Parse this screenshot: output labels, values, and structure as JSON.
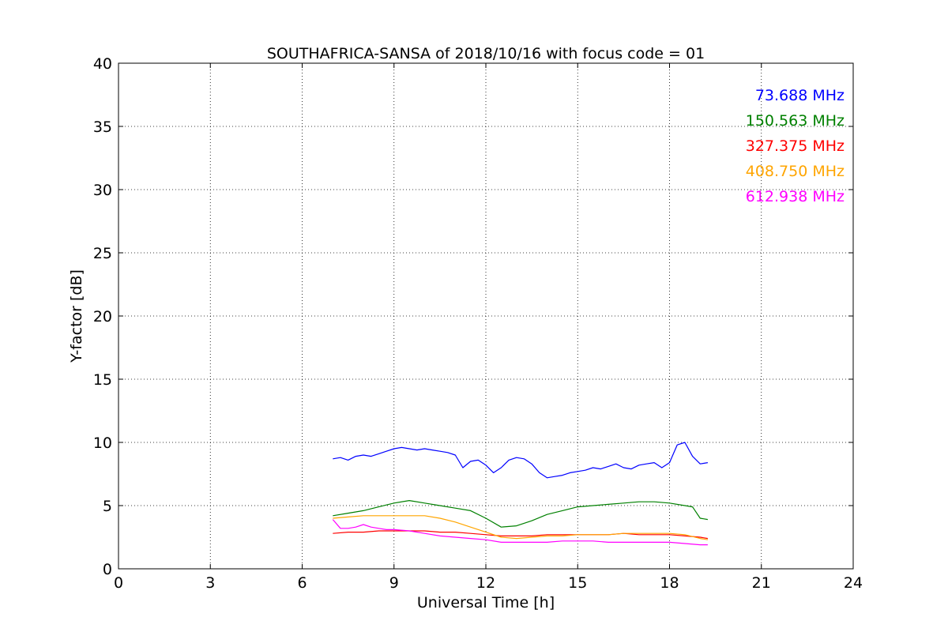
{
  "chart_data": {
    "type": "line",
    "title": "SOUTHAFRICA-SANSA of 2018/10/16 with focus code = 01",
    "xlabel": "Universal Time [h]",
    "ylabel": "Y-factor [dB]",
    "xlim": [
      0,
      24
    ],
    "ylim": [
      0,
      40
    ],
    "xticks": [
      0,
      3,
      6,
      9,
      12,
      15,
      18,
      21,
      24
    ],
    "yticks": [
      0,
      5,
      10,
      15,
      20,
      25,
      30,
      35,
      40
    ],
    "grid": true,
    "legend_position": "top-right",
    "series": [
      {
        "name": "73.688 MHz",
        "color": "#0000ff",
        "x": [
          7.0,
          7.25,
          7.5,
          7.75,
          8.0,
          8.25,
          8.5,
          8.75,
          9.0,
          9.25,
          9.5,
          9.75,
          10.0,
          10.25,
          10.5,
          10.75,
          11.0,
          11.25,
          11.5,
          11.75,
          12.0,
          12.25,
          12.5,
          12.75,
          13.0,
          13.25,
          13.5,
          13.75,
          14.0,
          14.25,
          14.5,
          14.75,
          15.0,
          15.25,
          15.5,
          15.75,
          16.0,
          16.25,
          16.5,
          16.75,
          17.0,
          17.25,
          17.5,
          17.75,
          18.0,
          18.25,
          18.5,
          18.75,
          19.0,
          19.25
        ],
        "y": [
          8.7,
          8.8,
          8.6,
          8.9,
          9.0,
          8.9,
          9.1,
          9.3,
          9.5,
          9.6,
          9.5,
          9.4,
          9.5,
          9.4,
          9.3,
          9.2,
          9.0,
          8.0,
          8.5,
          8.6,
          8.2,
          7.6,
          8.0,
          8.6,
          8.8,
          8.7,
          8.3,
          7.6,
          7.2,
          7.3,
          7.4,
          7.6,
          7.7,
          7.8,
          8.0,
          7.9,
          8.1,
          8.3,
          8.0,
          7.9,
          8.2,
          8.3,
          8.4,
          8.0,
          8.4,
          9.8,
          10.0,
          8.9,
          8.3,
          8.4
        ]
      },
      {
        "name": "150.563 MHz",
        "color": "#008000",
        "x": [
          7.0,
          7.5,
          8.0,
          8.5,
          9.0,
          9.5,
          10.0,
          10.5,
          11.0,
          11.5,
          12.0,
          12.5,
          13.0,
          13.5,
          14.0,
          14.5,
          15.0,
          15.5,
          16.0,
          16.5,
          17.0,
          17.5,
          18.0,
          18.5,
          18.75,
          19.0,
          19.25
        ],
        "y": [
          4.2,
          4.4,
          4.6,
          4.9,
          5.2,
          5.4,
          5.2,
          5.0,
          4.8,
          4.6,
          4.0,
          3.3,
          3.4,
          3.8,
          4.3,
          4.6,
          4.9,
          5.0,
          5.1,
          5.2,
          5.3,
          5.3,
          5.2,
          5.0,
          4.9,
          4.0,
          3.9
        ]
      },
      {
        "name": "327.375 MHz",
        "color": "#ff0000",
        "x": [
          7.0,
          7.5,
          8.0,
          8.5,
          9.0,
          9.5,
          10.0,
          10.5,
          11.0,
          11.5,
          12.0,
          12.5,
          13.0,
          13.5,
          14.0,
          14.5,
          15.0,
          15.5,
          16.0,
          16.5,
          17.0,
          17.5,
          18.0,
          18.5,
          19.0,
          19.25
        ],
        "y": [
          2.8,
          2.9,
          2.9,
          3.0,
          3.0,
          3.0,
          3.0,
          2.9,
          2.9,
          2.8,
          2.7,
          2.6,
          2.6,
          2.6,
          2.7,
          2.7,
          2.7,
          2.7,
          2.7,
          2.8,
          2.7,
          2.7,
          2.7,
          2.6,
          2.5,
          2.4
        ]
      },
      {
        "name": "408.750 MHz",
        "color": "#ffa500",
        "x": [
          7.0,
          7.5,
          8.0,
          8.5,
          9.0,
          9.5,
          10.0,
          10.5,
          11.0,
          11.5,
          12.0,
          12.5,
          13.0,
          13.5,
          14.0,
          14.5,
          15.0,
          15.5,
          16.0,
          16.5,
          17.0,
          17.5,
          18.0,
          18.5,
          19.0,
          19.25
        ],
        "y": [
          4.0,
          4.1,
          4.2,
          4.2,
          4.2,
          4.2,
          4.2,
          4.0,
          3.7,
          3.3,
          2.9,
          2.5,
          2.4,
          2.5,
          2.6,
          2.6,
          2.7,
          2.7,
          2.7,
          2.8,
          2.8,
          2.8,
          2.8,
          2.7,
          2.4,
          2.3
        ]
      },
      {
        "name": "612.938 MHz",
        "color": "#ff00ff",
        "x": [
          7.0,
          7.25,
          7.5,
          7.75,
          8.0,
          8.25,
          8.5,
          8.75,
          9.0,
          9.5,
          10.0,
          10.5,
          11.0,
          11.5,
          12.0,
          12.5,
          13.0,
          13.5,
          14.0,
          14.5,
          15.0,
          15.5,
          16.0,
          16.5,
          17.0,
          17.5,
          18.0,
          18.5,
          19.0,
          19.25
        ],
        "y": [
          3.9,
          3.2,
          3.2,
          3.3,
          3.5,
          3.3,
          3.2,
          3.1,
          3.1,
          3.0,
          2.8,
          2.6,
          2.5,
          2.4,
          2.3,
          2.1,
          2.1,
          2.1,
          2.1,
          2.2,
          2.2,
          2.2,
          2.1,
          2.1,
          2.1,
          2.1,
          2.1,
          2.0,
          1.9,
          1.9
        ]
      }
    ]
  }
}
